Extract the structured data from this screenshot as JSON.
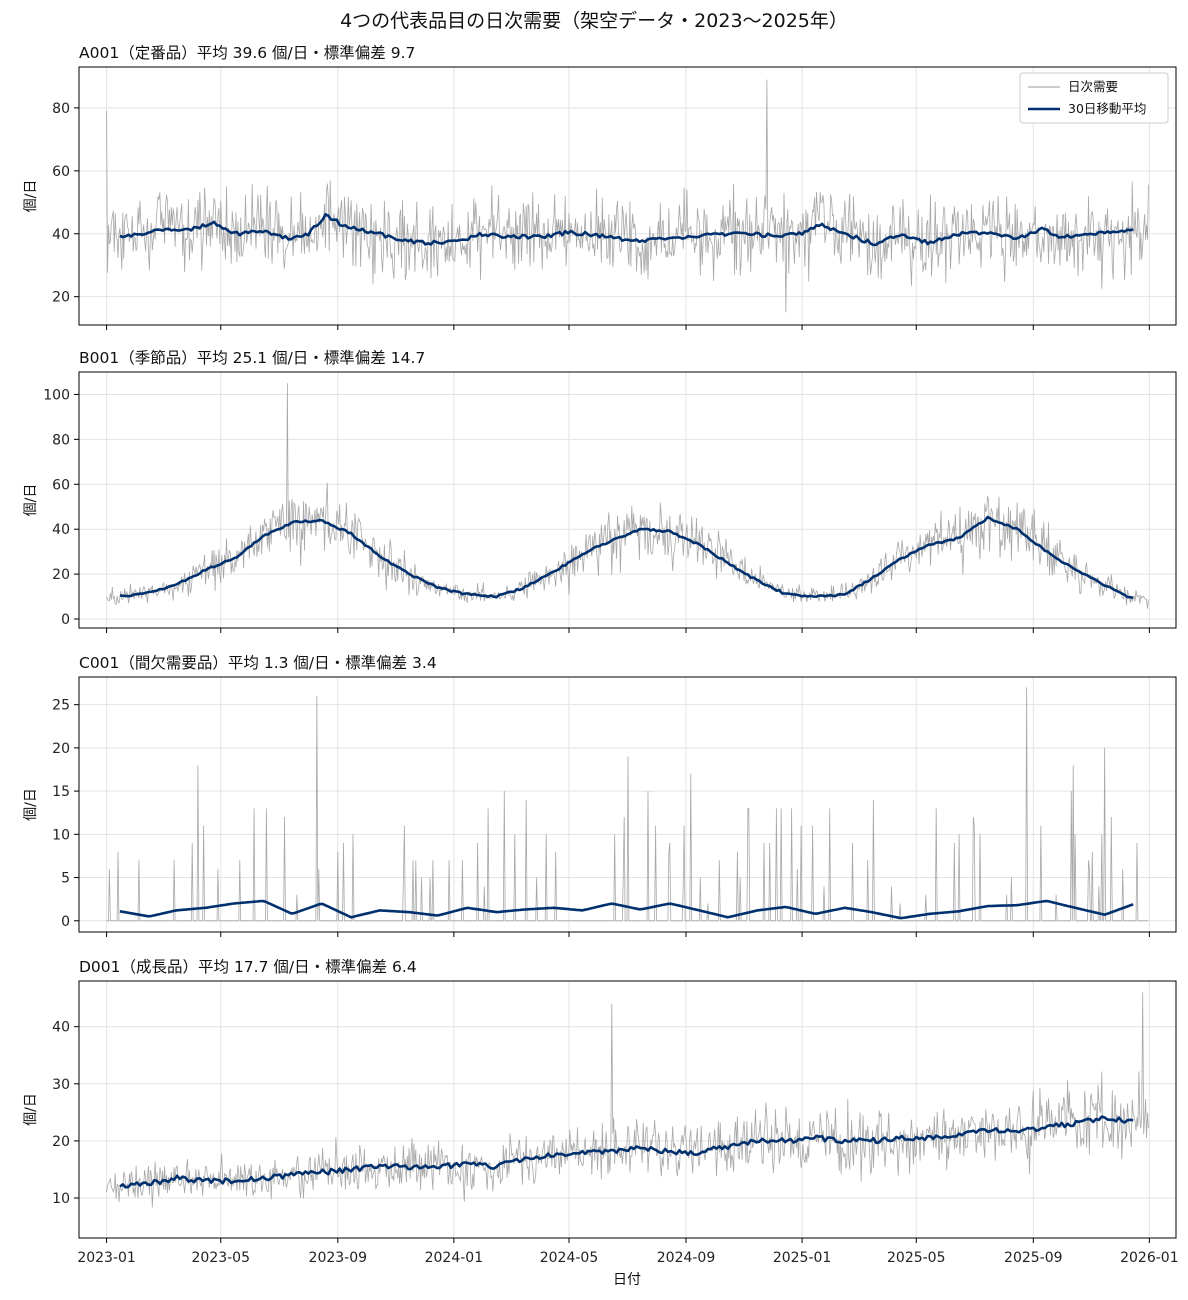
{
  "figure": {
    "title": "4つの代表品目の日次需要（架空データ・2023〜2025年）",
    "xlabel": "日付",
    "x_ticks": [
      "2023-01",
      "2023-05",
      "2023-09",
      "2024-01",
      "2024-05",
      "2024-09",
      "2025-01",
      "2025-05",
      "2025-09",
      "2026-01"
    ],
    "colors": {
      "daily": "#999999",
      "ma": "#00306e",
      "grid": "#e3e3e3",
      "frame": "#000000"
    }
  },
  "legend": {
    "daily_label": "日次需要",
    "ma_label": "30日移動平均",
    "placement": "upper right (first panel)"
  },
  "chart_data": [
    {
      "type": "line",
      "title": "A001（定番品）平均 39.6 個/日・標準偏差 9.7",
      "ylabel": "個/日",
      "xlabel": "",
      "x_range": [
        "2023-01-01",
        "2025-12-31"
      ],
      "ylim": [
        11,
        93
      ],
      "yticks": [
        20,
        40,
        60,
        80
      ],
      "grid": true,
      "daily": {
        "mean": 39.6,
        "std": 9.7,
        "first_value": 79,
        "peak": {
          "date": "2024-11-25",
          "value": 89
        },
        "min": {
          "date": "2024-12-15",
          "value": 15
        }
      },
      "series": [
        {
          "name": "30日移動平均",
          "x": [
            "2023-01-15",
            "2023-02-01",
            "2023-03-01",
            "2023-04-01",
            "2023-04-25",
            "2023-05-15",
            "2023-06-15",
            "2023-07-15",
            "2023-08-01",
            "2023-08-20",
            "2023-09-10",
            "2023-10-01",
            "2023-11-01",
            "2023-12-01",
            "2024-01-01",
            "2024-02-01",
            "2024-03-01",
            "2024-04-01",
            "2024-05-01",
            "2024-06-01",
            "2024-07-01",
            "2024-08-01",
            "2024-09-01",
            "2024-10-01",
            "2024-11-01",
            "2024-12-01",
            "2025-01-01",
            "2025-01-20",
            "2025-02-15",
            "2025-03-20",
            "2025-04-15",
            "2025-05-15",
            "2025-06-15",
            "2025-07-15",
            "2025-08-15",
            "2025-09-10",
            "2025-10-01",
            "2025-11-01",
            "2025-12-01",
            "2025-12-15"
          ],
          "values": [
            39,
            40,
            41,
            41.5,
            43.5,
            40,
            40.5,
            38.5,
            40,
            46,
            42,
            41,
            38.5,
            37,
            37.5,
            40,
            39,
            39,
            40.5,
            39.5,
            38,
            38,
            39,
            40,
            40,
            39.5,
            40,
            43,
            40,
            36.5,
            40,
            37,
            40,
            40.5,
            38.5,
            41.5,
            39,
            40,
            40.5,
            41
          ]
        }
      ]
    },
    {
      "type": "line",
      "title": "B001（季節品）平均 25.1 個/日・標準偏差 14.7",
      "ylabel": "個/日",
      "xlabel": "",
      "x_range": [
        "2023-01-01",
        "2025-12-31"
      ],
      "ylim": [
        -4,
        110
      ],
      "yticks": [
        0,
        20,
        40,
        60,
        80,
        100
      ],
      "grid": true,
      "daily": {
        "mean": 25.1,
        "std": 14.7,
        "peak": {
          "date": "2023-07-10",
          "value": 105
        }
      },
      "series": [
        {
          "name": "30日移動平均",
          "x": [
            "2023-01-15",
            "2023-02-15",
            "2023-03-15",
            "2023-04-15",
            "2023-05-15",
            "2023-06-15",
            "2023-07-15",
            "2023-08-15",
            "2023-09-15",
            "2023-10-15",
            "2023-11-15",
            "2023-12-15",
            "2024-01-15",
            "2024-02-15",
            "2024-03-15",
            "2024-04-15",
            "2024-05-15",
            "2024-06-15",
            "2024-07-15",
            "2024-08-15",
            "2024-09-15",
            "2024-10-15",
            "2024-11-15",
            "2024-12-15",
            "2025-01-15",
            "2025-02-15",
            "2025-03-15",
            "2025-04-15",
            "2025-05-15",
            "2025-06-15",
            "2025-07-15",
            "2025-08-15",
            "2025-09-15",
            "2025-10-15",
            "2025-11-15",
            "2025-12-15"
          ],
          "values": [
            10,
            12,
            15,
            22,
            27,
            37,
            43,
            44,
            38,
            28,
            20,
            14,
            11,
            10,
            14,
            21,
            29,
            35,
            40,
            39,
            33,
            25,
            17,
            11,
            10,
            11,
            18,
            27,
            33,
            36,
            45,
            40,
            30,
            22,
            15,
            9
          ]
        }
      ]
    },
    {
      "type": "line",
      "title": "C001（間欠需要品）平均 1.3 個/日・標準偏差 3.4",
      "ylabel": "個/日",
      "xlabel": "",
      "x_range": [
        "2023-01-01",
        "2025-12-31"
      ],
      "ylim": [
        -1.3,
        28.2
      ],
      "yticks": [
        0,
        5,
        10,
        15,
        20,
        25
      ],
      "grid": true,
      "daily": {
        "mean": 1.3,
        "std": 3.4,
        "peaks": [
          {
            "date": "2023-08-10",
            "value": 26
          },
          {
            "date": "2025-08-25",
            "value": 27
          },
          {
            "date": "2025-11-15",
            "value": 20
          }
        ]
      },
      "series": [
        {
          "name": "30日移動平均",
          "x": [
            "2023-01-15",
            "2023-02-15",
            "2023-03-15",
            "2023-04-15",
            "2023-05-15",
            "2023-06-15",
            "2023-07-15",
            "2023-08-15",
            "2023-09-15",
            "2023-10-15",
            "2023-11-15",
            "2023-12-15",
            "2024-01-15",
            "2024-02-15",
            "2024-03-15",
            "2024-04-15",
            "2024-05-15",
            "2024-06-15",
            "2024-07-15",
            "2024-08-15",
            "2024-09-15",
            "2024-10-15",
            "2024-11-15",
            "2024-12-15",
            "2025-01-15",
            "2025-02-15",
            "2025-03-15",
            "2025-04-15",
            "2025-05-15",
            "2025-06-15",
            "2025-07-15",
            "2025-08-15",
            "2025-09-15",
            "2025-10-15",
            "2025-11-15",
            "2025-12-15"
          ],
          "values": [
            1.1,
            0.5,
            1.2,
            1.5,
            2.0,
            2.3,
            0.8,
            2.0,
            0.4,
            1.2,
            1.0,
            0.6,
            1.5,
            1.0,
            1.3,
            1.5,
            1.2,
            2.0,
            1.3,
            2.0,
            1.2,
            0.4,
            1.2,
            1.6,
            0.8,
            1.5,
            1.0,
            0.3,
            0.8,
            1.1,
            1.7,
            1.8,
            2.3,
            1.5,
            0.7,
            1.9
          ]
        }
      ]
    },
    {
      "type": "line",
      "title": "D001（成長品）平均 17.7 個/日・標準偏差 6.4",
      "ylabel": "個/日",
      "xlabel": "日付",
      "x_range": [
        "2023-01-01",
        "2025-12-31"
      ],
      "ylim": [
        3,
        48
      ],
      "yticks": [
        10,
        20,
        30,
        40
      ],
      "grid": true,
      "daily": {
        "mean": 17.7,
        "std": 6.4,
        "peaks": [
          {
            "date": "2024-06-15",
            "value": 44
          },
          {
            "date": "2025-12-25",
            "value": 46
          }
        ]
      },
      "series": [
        {
          "name": "30日移動平均",
          "x": [
            "2023-01-15",
            "2023-02-15",
            "2023-03-15",
            "2023-04-15",
            "2023-05-15",
            "2023-06-15",
            "2023-07-15",
            "2023-08-15",
            "2023-09-15",
            "2023-10-15",
            "2023-11-15",
            "2023-12-15",
            "2024-01-15",
            "2024-02-15",
            "2024-03-15",
            "2024-04-15",
            "2024-05-15",
            "2024-06-15",
            "2024-07-15",
            "2024-08-15",
            "2024-09-15",
            "2024-10-15",
            "2024-11-15",
            "2024-12-15",
            "2025-01-15",
            "2025-02-15",
            "2025-03-15",
            "2025-04-15",
            "2025-05-15",
            "2025-06-15",
            "2025-07-15",
            "2025-08-15",
            "2025-09-15",
            "2025-10-15",
            "2025-11-15",
            "2025-12-15"
          ],
          "values": [
            12,
            12.5,
            13.5,
            13,
            13,
            13.5,
            14,
            14.5,
            15,
            15.5,
            15.5,
            15.5,
            16,
            15.5,
            17,
            17.5,
            18,
            18,
            19,
            18,
            18,
            19,
            20,
            20,
            20.5,
            20,
            20,
            20.5,
            20.5,
            21,
            22,
            21.5,
            22.5,
            23,
            24,
            23.5
          ]
        }
      ]
    }
  ]
}
